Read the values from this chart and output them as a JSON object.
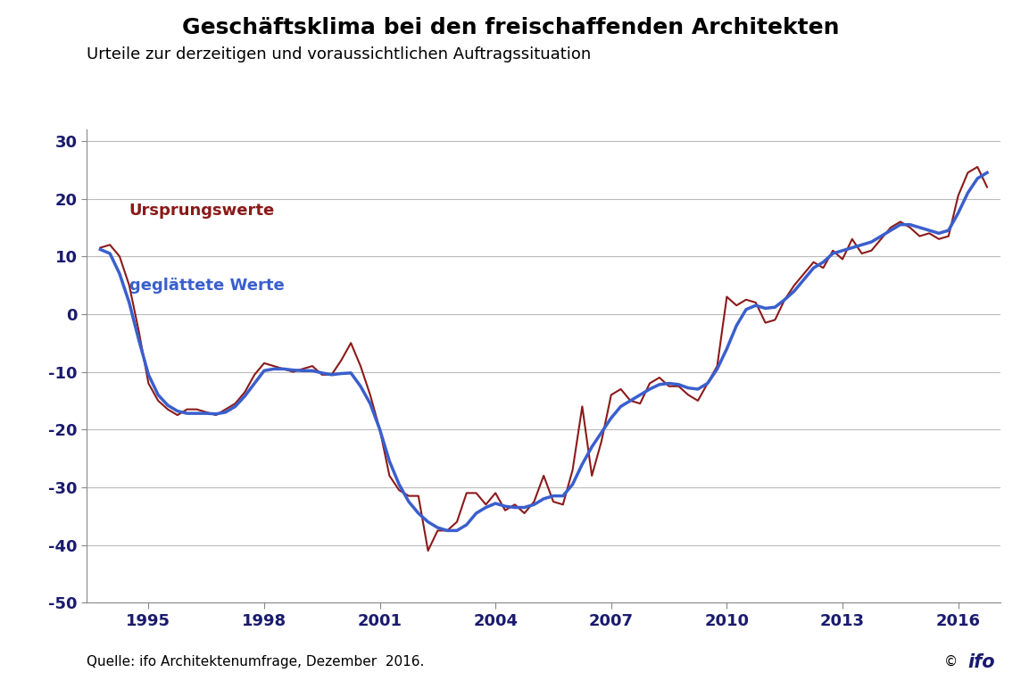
{
  "title": "Geschäftsklima bei den freischaffenden Architekten",
  "subtitle": "Urteile zur derzeitigen und voraussichtlichen Auftragssituation",
  "source_text": "Quelle: ifo Architektenumfrage, Dezember  2016.",
  "copyright_text": "©",
  "ylabel_values": [
    30,
    20,
    10,
    0,
    -10,
    -20,
    -30,
    -40,
    -50
  ],
  "ylim": [
    -50,
    32
  ],
  "xlim": [
    1993.4,
    2017.1
  ],
  "xticks": [
    1995,
    1998,
    2001,
    2004,
    2007,
    2010,
    2013,
    2016
  ],
  "color_original": "#8B1A1A",
  "color_smoothed": "#3A5FCD",
  "label_original": "Ursprungswerte",
  "label_smoothed": "geglättete Werte",
  "background_color": "#FFFFFF",
  "grid_color": "#BBBBBB",
  "title_fontsize": 18,
  "subtitle_fontsize": 13,
  "tick_fontsize": 13,
  "annotation_fontsize": 13,
  "original_data": [
    [
      1993.75,
      11.5
    ],
    [
      1994.0,
      12.0
    ],
    [
      1994.25,
      10.0
    ],
    [
      1994.5,
      5.0
    ],
    [
      1994.75,
      -3.0
    ],
    [
      1995.0,
      -12.0
    ],
    [
      1995.25,
      -15.0
    ],
    [
      1995.5,
      -16.5
    ],
    [
      1995.75,
      -17.5
    ],
    [
      1996.0,
      -16.5
    ],
    [
      1996.25,
      -16.5
    ],
    [
      1996.5,
      -17.0
    ],
    [
      1996.75,
      -17.5
    ],
    [
      1997.0,
      -16.5
    ],
    [
      1997.25,
      -15.5
    ],
    [
      1997.5,
      -13.5
    ],
    [
      1997.75,
      -10.5
    ],
    [
      1998.0,
      -8.5
    ],
    [
      1998.25,
      -9.0
    ],
    [
      1998.5,
      -9.5
    ],
    [
      1998.75,
      -10.0
    ],
    [
      1999.0,
      -9.5
    ],
    [
      1999.25,
      -9.0
    ],
    [
      1999.5,
      -10.5
    ],
    [
      1999.75,
      -10.5
    ],
    [
      2000.0,
      -8.0
    ],
    [
      2000.25,
      -5.0
    ],
    [
      2000.5,
      -9.0
    ],
    [
      2000.75,
      -14.0
    ],
    [
      2001.0,
      -20.0
    ],
    [
      2001.25,
      -28.0
    ],
    [
      2001.5,
      -30.5
    ],
    [
      2001.75,
      -31.5
    ],
    [
      2002.0,
      -31.5
    ],
    [
      2002.25,
      -41.0
    ],
    [
      2002.5,
      -37.5
    ],
    [
      2002.75,
      -37.5
    ],
    [
      2003.0,
      -36.0
    ],
    [
      2003.25,
      -31.0
    ],
    [
      2003.5,
      -31.0
    ],
    [
      2003.75,
      -33.0
    ],
    [
      2004.0,
      -31.0
    ],
    [
      2004.25,
      -34.0
    ],
    [
      2004.5,
      -33.0
    ],
    [
      2004.75,
      -34.5
    ],
    [
      2005.0,
      -32.5
    ],
    [
      2005.25,
      -28.0
    ],
    [
      2005.5,
      -32.5
    ],
    [
      2005.75,
      -33.0
    ],
    [
      2006.0,
      -27.0
    ],
    [
      2006.25,
      -16.0
    ],
    [
      2006.5,
      -28.0
    ],
    [
      2006.75,
      -22.0
    ],
    [
      2007.0,
      -14.0
    ],
    [
      2007.25,
      -13.0
    ],
    [
      2007.5,
      -15.0
    ],
    [
      2007.75,
      -15.5
    ],
    [
      2008.0,
      -12.0
    ],
    [
      2008.25,
      -11.0
    ],
    [
      2008.5,
      -12.5
    ],
    [
      2008.75,
      -12.5
    ],
    [
      2009.0,
      -14.0
    ],
    [
      2009.25,
      -15.0
    ],
    [
      2009.5,
      -12.0
    ],
    [
      2009.75,
      -9.0
    ],
    [
      2010.0,
      3.0
    ],
    [
      2010.25,
      1.5
    ],
    [
      2010.5,
      2.5
    ],
    [
      2010.75,
      2.0
    ],
    [
      2011.0,
      -1.5
    ],
    [
      2011.25,
      -1.0
    ],
    [
      2011.5,
      2.5
    ],
    [
      2011.75,
      5.0
    ],
    [
      2012.0,
      7.0
    ],
    [
      2012.25,
      9.0
    ],
    [
      2012.5,
      8.0
    ],
    [
      2012.75,
      11.0
    ],
    [
      2013.0,
      9.5
    ],
    [
      2013.25,
      13.0
    ],
    [
      2013.5,
      10.5
    ],
    [
      2013.75,
      11.0
    ],
    [
      2014.0,
      13.0
    ],
    [
      2014.25,
      15.0
    ],
    [
      2014.5,
      16.0
    ],
    [
      2014.75,
      15.0
    ],
    [
      2015.0,
      13.5
    ],
    [
      2015.25,
      14.0
    ],
    [
      2015.5,
      13.0
    ],
    [
      2015.75,
      13.5
    ],
    [
      2016.0,
      20.5
    ],
    [
      2016.25,
      24.5
    ],
    [
      2016.5,
      25.5
    ],
    [
      2016.75,
      22.0
    ]
  ],
  "smoothed_data": [
    [
      1993.75,
      11.2
    ],
    [
      1994.0,
      10.5
    ],
    [
      1994.25,
      7.0
    ],
    [
      1994.5,
      2.0
    ],
    [
      1994.75,
      -4.5
    ],
    [
      1995.0,
      -10.5
    ],
    [
      1995.25,
      -14.0
    ],
    [
      1995.5,
      -15.8
    ],
    [
      1995.75,
      -16.8
    ],
    [
      1996.0,
      -17.2
    ],
    [
      1996.25,
      -17.2
    ],
    [
      1996.5,
      -17.2
    ],
    [
      1996.75,
      -17.3
    ],
    [
      1997.0,
      -17.0
    ],
    [
      1997.25,
      -16.0
    ],
    [
      1997.5,
      -14.2
    ],
    [
      1997.75,
      -12.0
    ],
    [
      1998.0,
      -9.8
    ],
    [
      1998.25,
      -9.5
    ],
    [
      1998.5,
      -9.5
    ],
    [
      1998.75,
      -9.7
    ],
    [
      1999.0,
      -9.8
    ],
    [
      1999.25,
      -9.8
    ],
    [
      1999.5,
      -10.2
    ],
    [
      1999.75,
      -10.5
    ],
    [
      2000.0,
      -10.3
    ],
    [
      2000.25,
      -10.2
    ],
    [
      2000.5,
      -12.5
    ],
    [
      2000.75,
      -15.5
    ],
    [
      2001.0,
      -20.0
    ],
    [
      2001.25,
      -25.5
    ],
    [
      2001.5,
      -29.5
    ],
    [
      2001.75,
      -32.5
    ],
    [
      2002.0,
      -34.5
    ],
    [
      2002.25,
      -36.0
    ],
    [
      2002.5,
      -37.0
    ],
    [
      2002.75,
      -37.5
    ],
    [
      2003.0,
      -37.5
    ],
    [
      2003.25,
      -36.5
    ],
    [
      2003.5,
      -34.5
    ],
    [
      2003.75,
      -33.5
    ],
    [
      2004.0,
      -32.8
    ],
    [
      2004.25,
      -33.3
    ],
    [
      2004.5,
      -33.5
    ],
    [
      2004.75,
      -33.5
    ],
    [
      2005.0,
      -33.0
    ],
    [
      2005.25,
      -32.0
    ],
    [
      2005.5,
      -31.5
    ],
    [
      2005.75,
      -31.5
    ],
    [
      2006.0,
      -29.5
    ],
    [
      2006.25,
      -26.0
    ],
    [
      2006.5,
      -23.0
    ],
    [
      2006.75,
      -20.5
    ],
    [
      2007.0,
      -18.0
    ],
    [
      2007.25,
      -16.0
    ],
    [
      2007.5,
      -15.0
    ],
    [
      2007.75,
      -14.0
    ],
    [
      2008.0,
      -13.0
    ],
    [
      2008.25,
      -12.2
    ],
    [
      2008.5,
      -12.0
    ],
    [
      2008.75,
      -12.2
    ],
    [
      2009.0,
      -12.8
    ],
    [
      2009.25,
      -13.0
    ],
    [
      2009.5,
      -12.0
    ],
    [
      2009.75,
      -9.5
    ],
    [
      2010.0,
      -6.0
    ],
    [
      2010.25,
      -2.0
    ],
    [
      2010.5,
      0.8
    ],
    [
      2010.75,
      1.5
    ],
    [
      2011.0,
      1.0
    ],
    [
      2011.25,
      1.2
    ],
    [
      2011.5,
      2.5
    ],
    [
      2011.75,
      4.0
    ],
    [
      2012.0,
      6.0
    ],
    [
      2012.25,
      8.0
    ],
    [
      2012.5,
      9.0
    ],
    [
      2012.75,
      10.5
    ],
    [
      2013.0,
      11.0
    ],
    [
      2013.25,
      11.5
    ],
    [
      2013.5,
      12.0
    ],
    [
      2013.75,
      12.5
    ],
    [
      2014.0,
      13.5
    ],
    [
      2014.25,
      14.5
    ],
    [
      2014.5,
      15.5
    ],
    [
      2014.75,
      15.5
    ],
    [
      2015.0,
      15.0
    ],
    [
      2015.25,
      14.5
    ],
    [
      2015.5,
      14.0
    ],
    [
      2015.75,
      14.5
    ],
    [
      2016.0,
      17.5
    ],
    [
      2016.25,
      21.0
    ],
    [
      2016.5,
      23.5
    ],
    [
      2016.75,
      24.5
    ]
  ]
}
